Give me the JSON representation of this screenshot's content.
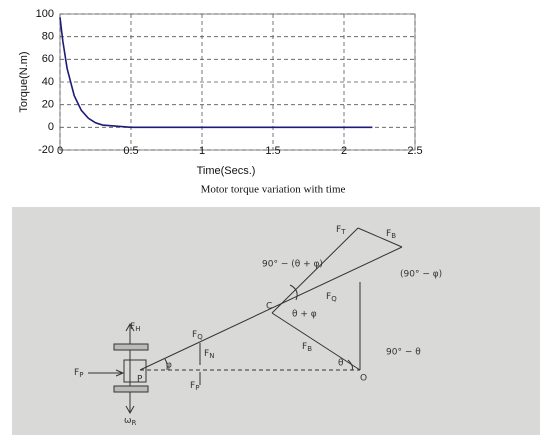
{
  "chart_data": {
    "type": "line",
    "xlabel": "Time(Secs.)",
    "ylabel": "Torque(N.m)",
    "color": "#1c1c78",
    "x": [
      0,
      0.02,
      0.05,
      0.1,
      0.15,
      0.2,
      0.25,
      0.3,
      0.4,
      0.5,
      1,
      1.5,
      2,
      2.2
    ],
    "values": [
      97,
      76,
      52,
      28,
      15,
      8,
      4,
      2,
      1,
      0,
      0,
      0,
      0,
      0
    ],
    "xlim": [
      0,
      2.5
    ],
    "xticks": [
      0,
      0.5,
      1,
      1.5,
      2,
      2.5
    ],
    "ylim": [
      -20,
      100
    ],
    "yticks": [
      -20,
      0,
      20,
      40,
      60,
      80,
      100
    ],
    "grid": true
  },
  "caption": "Motor torque variation with time",
  "diagram": {
    "labels": [
      {
        "symbol": "F",
        "sub": "T"
      },
      {
        "symbol": "F",
        "sub": "B"
      },
      {
        "text": "90° − (θ + φ)"
      },
      {
        "text": "(90° − φ)"
      },
      {
        "text": "C"
      },
      {
        "symbol": "F",
        "sub": "Q"
      },
      {
        "text": "θ + φ"
      },
      {
        "symbol": "F",
        "sub": "H"
      },
      {
        "symbol": "F",
        "sub": "Q"
      },
      {
        "symbol": "F",
        "sub": "N"
      },
      {
        "symbol": "F",
        "sub": "B"
      },
      {
        "text": "90° − θ"
      },
      {
        "symbol": "F",
        "sub": "P"
      },
      {
        "text": "P"
      },
      {
        "text": "φ"
      },
      {
        "symbol": "F",
        "sub": "P"
      },
      {
        "text": "θ"
      },
      {
        "text": "O"
      },
      {
        "symbol": "ω",
        "sub": "R"
      }
    ]
  }
}
